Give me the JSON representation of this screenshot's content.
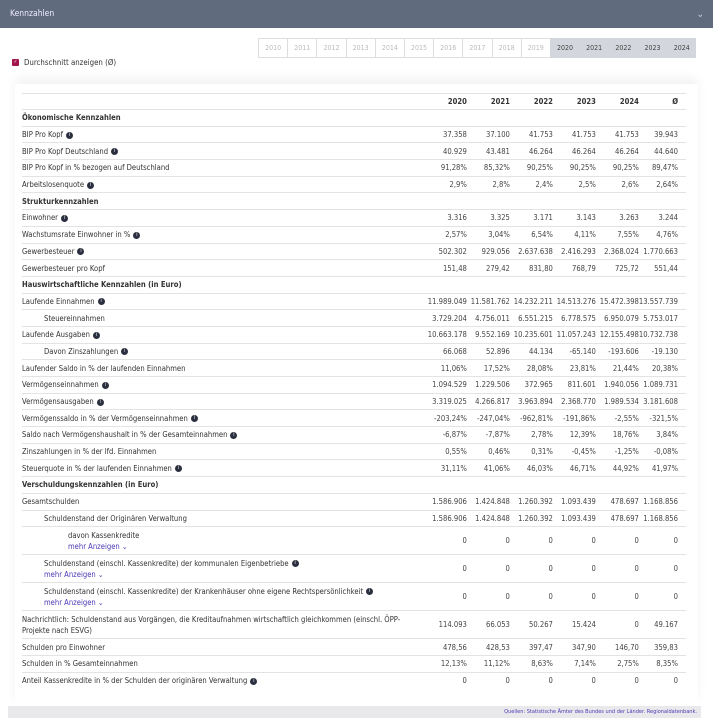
{
  "header": {
    "title": "Kennzahlen",
    "collapse_icon": "chevron-down-icon"
  },
  "years": {
    "all": [
      "2010",
      "2011",
      "2012",
      "2013",
      "2014",
      "2015",
      "2016",
      "2017",
      "2018",
      "2019",
      "2020",
      "2021",
      "2022",
      "2023",
      "2024"
    ],
    "selected": [
      "2020",
      "2021",
      "2022",
      "2023",
      "2024"
    ]
  },
  "average_toggle": {
    "label": "Durchschnitt anzeigen (Ø)",
    "checked": true,
    "color": "#a3164d"
  },
  "table": {
    "columns": [
      "2020",
      "2021",
      "2022",
      "2023",
      "2024",
      "Ø"
    ],
    "rows": [
      {
        "type": "section",
        "label": "Ökonomische Kennzahlen"
      },
      {
        "label": "BIP Pro Kopf",
        "info": true,
        "values": [
          "37.358",
          "37.100",
          "41.753",
          "41.753",
          "41.753",
          "39.943"
        ]
      },
      {
        "label": "BIP Pro Kopf Deutschland",
        "info": true,
        "values": [
          "40.929",
          "43.481",
          "46.264",
          "46.264",
          "46.264",
          "44.640"
        ]
      },
      {
        "label": "BIP Pro Kopf in % bezogen auf Deutschland",
        "values": [
          "91,28%",
          "85,32%",
          "90,25%",
          "90,25%",
          "90,25%",
          "89,47%"
        ]
      },
      {
        "label": "Arbeitslosenquote",
        "info": true,
        "values": [
          "2,9%",
          "2,8%",
          "2,4%",
          "2,5%",
          "2,6%",
          "2,64%"
        ]
      },
      {
        "type": "section",
        "label": "Strukturkennzahlen"
      },
      {
        "label": "Einwohner",
        "info": true,
        "values": [
          "3.316",
          "3.325",
          "3.171",
          "3.143",
          "3.263",
          "3.244"
        ]
      },
      {
        "label": "Wachstumsrate Einwohner in %",
        "info": true,
        "values": [
          "2,57%",
          "3,04%",
          "6,54%",
          "4,11%",
          "7,55%",
          "4,76%"
        ]
      },
      {
        "label": "Gewerbesteuer",
        "info": true,
        "values": [
          "502.302",
          "929.056",
          "2.637.638",
          "2.416.293",
          "2.368.024",
          "1.770.663"
        ]
      },
      {
        "label": "Gewerbesteuer pro Kopf",
        "values": [
          "151,48",
          "279,42",
          "831,80",
          "768,79",
          "725,72",
          "551,44"
        ]
      },
      {
        "type": "section",
        "label": "Hauswirtschaftliche Kennzahlen (in Euro)"
      },
      {
        "label": "Laufende Einnahmen",
        "info": true,
        "values": [
          "11.989.049",
          "11.581.762",
          "14.232.211",
          "14.513.276",
          "15.472.398",
          "13.557.739"
        ]
      },
      {
        "label": "Steuereinnahmen",
        "indent": 1,
        "values": [
          "3.729.204",
          "4.756.011",
          "6.551.215",
          "6.778.575",
          "6.950.079",
          "5.753.017"
        ]
      },
      {
        "label": "Laufende Ausgaben",
        "info": true,
        "values": [
          "10.663.178",
          "9.552.169",
          "10.235.601",
          "11.057.243",
          "12.155.498",
          "10.732.738"
        ]
      },
      {
        "label": "Davon Zinszahlungen",
        "indent": 1,
        "info": true,
        "values": [
          "66.068",
          "52.896",
          "44.134",
          "-65.140",
          "-193.606",
          "-19.130"
        ]
      },
      {
        "label": "Laufender Saldo in % der laufenden Einnahmen",
        "values": [
          "11,06%",
          "17,52%",
          "28,08%",
          "23,81%",
          "21,44%",
          "20,38%"
        ]
      },
      {
        "label": "Vermögenseinnahmen",
        "info": true,
        "values": [
          "1.094.529",
          "1.229.506",
          "372.965",
          "811.601",
          "1.940.056",
          "1.089.731"
        ]
      },
      {
        "label": "Vermögensausgaben",
        "info": true,
        "values": [
          "3.319.025",
          "4.266.817",
          "3.963.894",
          "2.368.770",
          "1.989.534",
          "3.181.608"
        ]
      },
      {
        "label": "Vermögenssaldo in % der Vermögenseinnahmen",
        "info": true,
        "values": [
          "-203,24%",
          "-247,04%",
          "-962,81%",
          "-191,86%",
          "-2,55%",
          "-321,5%"
        ]
      },
      {
        "label": "Saldo nach Vermögenshaushalt in % der Gesamteinnahmen",
        "info": true,
        "values": [
          "-6,87%",
          "-7,87%",
          "2,78%",
          "12,39%",
          "18,76%",
          "3,84%"
        ]
      },
      {
        "label": "Zinszahlungen in % der lfd. Einnahmen",
        "values": [
          "0,55%",
          "0,46%",
          "0,31%",
          "-0,45%",
          "-1,25%",
          "-0,08%"
        ]
      },
      {
        "label": "Steuerquote in % der laufenden Einnahmen",
        "info": true,
        "values": [
          "31,11%",
          "41,06%",
          "46,03%",
          "46,71%",
          "44,92%",
          "41,97%"
        ]
      },
      {
        "type": "section",
        "label": "Verschuldungskennzahlen (in Euro)"
      },
      {
        "label": "Gesamtschulden",
        "values": [
          "1.586.906",
          "1.424.848",
          "1.260.392",
          "1.093.439",
          "478.697",
          "1.168.856"
        ]
      },
      {
        "label": "Schuldenstand der Originären Verwaltung",
        "indent": 1,
        "values": [
          "1.586.906",
          "1.424.848",
          "1.260.392",
          "1.093.439",
          "478.697",
          "1.168.856"
        ]
      },
      {
        "label": "davon Kassenkredite",
        "indent": 2,
        "more": "mehr Anzeigen",
        "values": [
          "0",
          "0",
          "0",
          "0",
          "0",
          "0"
        ]
      },
      {
        "label": "Schuldenstand (einschl. Kassenkredite) der kommunalen Eigenbetriebe",
        "indent": 1,
        "info": true,
        "more": "mehr Anzeigen",
        "values": [
          "0",
          "0",
          "0",
          "0",
          "0",
          "0"
        ]
      },
      {
        "label": "Schuldenstand (einschl. Kassenkredite) der Krankenhäuser ohne eigene Rechtspersönlichkeit",
        "indent": 1,
        "info": true,
        "more": "mehr Anzeigen",
        "values": [
          "0",
          "0",
          "0",
          "0",
          "0",
          "0"
        ]
      },
      {
        "label": "Nachrichtlich: Schuldenstand aus Vorgängen, die Kreditaufnahmen wirtschaftlich gleichkommen (einschl. ÖPP-Projekte nach ESVG)",
        "wrap": true,
        "values": [
          "114.093",
          "66.053",
          "50.267",
          "15.424",
          "0",
          "49.167"
        ]
      },
      {
        "label": "Schulden pro Einwohner",
        "values": [
          "478,56",
          "428,53",
          "397,47",
          "347,90",
          "146,70",
          "359,83"
        ]
      },
      {
        "label": "Schulden in % Gesamteinnahmen",
        "values": [
          "12,13%",
          "11,12%",
          "8,63%",
          "7,14%",
          "2,75%",
          "8,35%"
        ]
      },
      {
        "label": "Anteil Kassenkredite in % der Schulden der originären Verwaltung",
        "info": true,
        "values": [
          "0",
          "0",
          "0",
          "0",
          "0",
          "0"
        ]
      }
    ]
  },
  "footer": {
    "source": "Quellen: Statistische Ämter des Bundes und der Länder. Regionaldatenbank."
  }
}
